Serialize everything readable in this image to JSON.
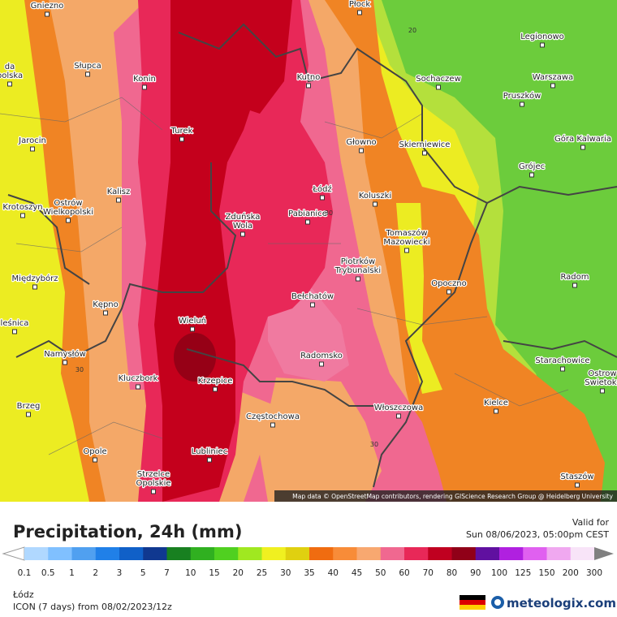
{
  "map": {
    "cities": [
      {
        "lines": [
          "Gniezno"
        ]
      },
      {
        "lines": [
          "Płock"
        ]
      },
      {
        "lines": [
          "Legionowo"
        ]
      },
      {
        "lines": [
          "Słupca"
        ]
      },
      {
        "lines": [
          "Konin"
        ]
      },
      {
        "lines": [
          "Kutno"
        ]
      },
      {
        "lines": [
          "Sochaczew"
        ]
      },
      {
        "lines": [
          "Warszawa"
        ]
      },
      {
        "lines": [
          "Pruszków"
        ]
      },
      {
        "lines": [
          "Turek"
        ]
      },
      {
        "lines": [
          "Głowno"
        ]
      },
      {
        "lines": [
          "Skierniewice"
        ]
      },
      {
        "lines": [
          "Góra Kalwaria"
        ]
      },
      {
        "lines": [
          "Jarocin"
        ]
      },
      {
        "lines": [
          "Grójec"
        ]
      },
      {
        "lines": [
          "Kalisz"
        ]
      },
      {
        "lines": [
          "Łódź"
        ]
      },
      {
        "lines": [
          "Koluszki"
        ]
      },
      {
        "lines": [
          "Krotoszyn"
        ]
      },
      {
        "lines": [
          "Ostrów",
          "Wielkopolski"
        ]
      },
      {
        "lines": [
          "Zduńska",
          "Wola"
        ]
      },
      {
        "lines": [
          "Pabianice"
        ]
      },
      {
        "lines": [
          "Tomaszów",
          "Mazowiecki"
        ]
      },
      {
        "lines": [
          "Piotrków",
          "Trybunalski"
        ]
      },
      {
        "lines": [
          "Międzybórz"
        ]
      },
      {
        "lines": [
          "Radom"
        ]
      },
      {
        "lines": [
          "Opoczno"
        ]
      },
      {
        "lines": [
          "Kępno"
        ]
      },
      {
        "lines": [
          "Bełchatów"
        ]
      },
      {
        "lines": [
          "leśnica"
        ]
      },
      {
        "lines": [
          "Wieluń"
        ]
      },
      {
        "lines": [
          "Namysłów"
        ]
      },
      {
        "lines": [
          "Radomsko"
        ]
      },
      {
        "lines": [
          "Starachowice"
        ]
      },
      {
        "lines": [
          "Ostrow",
          "Swietokr"
        ]
      },
      {
        "lines": [
          "Kluczbork"
        ]
      },
      {
        "lines": [
          "Krzepice"
        ]
      },
      {
        "lines": [
          "Kielce"
        ]
      },
      {
        "lines": [
          "Brzeg"
        ]
      },
      {
        "lines": [
          "Włoszczowa"
        ]
      },
      {
        "lines": [
          "Częstochowa"
        ]
      },
      {
        "lines": [
          "Opole"
        ]
      },
      {
        "lines": [
          "Lubliniec"
        ]
      },
      {
        "lines": [
          "Strzelce",
          "Opolskie"
        ]
      },
      {
        "lines": [
          "Staszów"
        ]
      },
      {
        "lines": [
          "da",
          "polska"
        ]
      }
    ],
    "contour_labels": [
      "20",
      "30",
      "30",
      "30"
    ],
    "attribution": "Map data © OpenStreetMap contributors, rendering GIScience Research Group @ Heidelberg University"
  },
  "legend": {
    "title": "Precipitation, 24h (mm)",
    "valid_label": "Valid for",
    "valid_time": "Sun 08/06/2023, 05:00pm CEST",
    "ticks": [
      0.1,
      0.5,
      1,
      2,
      3,
      5,
      7,
      10,
      15,
      20,
      25,
      30,
      35,
      40,
      45,
      50,
      60,
      70,
      80,
      90,
      100,
      125,
      150,
      200,
      300
    ]
  },
  "footer": {
    "location": "Łódz",
    "model": "ICON (7 days) from 08/02/2023/12z",
    "brand": "meteologix.com"
  }
}
